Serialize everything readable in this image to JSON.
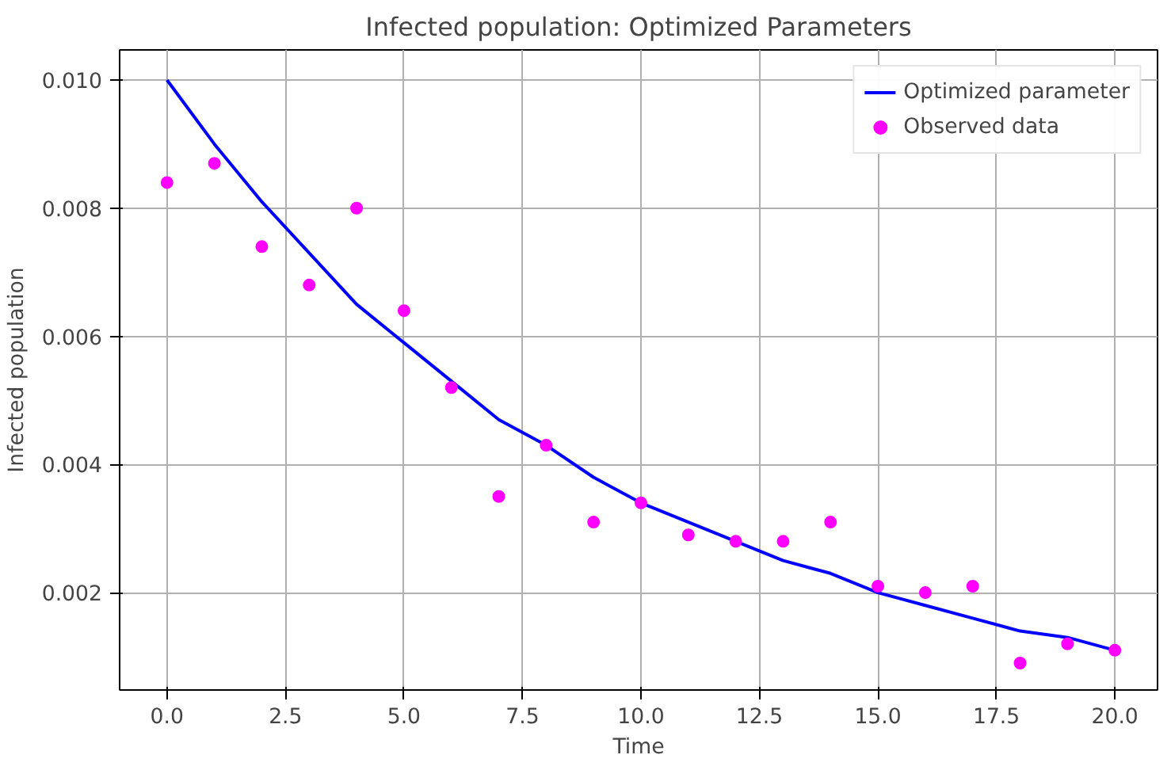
{
  "chart_data": {
    "type": "line",
    "title": "Infected population: Optimized Parameters",
    "xlabel": "Time",
    "ylabel": "Infected population",
    "series": [
      {
        "name": "Optimized parameter",
        "color": "#0000ff",
        "marker": "none",
        "line_style": "solid",
        "x": [
          0,
          1,
          2,
          3,
          4,
          5,
          6,
          7,
          8,
          9,
          10,
          11,
          12,
          13,
          14,
          15,
          16,
          17,
          18,
          19,
          20
        ],
        "values": [
          0.01,
          0.009,
          0.0081,
          0.0073,
          0.0065,
          0.0059,
          0.0053,
          0.0047,
          0.0043,
          0.0038,
          0.0034,
          0.0031,
          0.0028,
          0.0025,
          0.0023,
          0.002,
          0.0018,
          0.0016,
          0.0014,
          0.0013,
          0.0011
        ]
      },
      {
        "name": "Observed data",
        "type": "scatter",
        "color": "#ff00ff",
        "marker": "circle",
        "x": [
          0,
          1,
          2,
          3,
          4,
          5,
          6,
          7,
          8,
          9,
          10,
          11,
          12,
          13,
          14,
          15,
          16,
          17,
          18,
          19,
          20
        ],
        "values": [
          0.0084,
          0.0087,
          0.0074,
          0.0068,
          0.008,
          0.0064,
          0.0052,
          0.0035,
          0.0043,
          0.0031,
          0.0034,
          0.0029,
          0.0028,
          0.0028,
          0.0031,
          0.0021,
          0.002,
          0.0021,
          0.0009,
          0.0012,
          0.0011
        ]
      }
    ],
    "xlim": [
      -1.0,
      20.9
    ],
    "ylim": [
      0.00048,
      0.01047
    ],
    "xticks": [
      {
        "value": 0,
        "label": "0.0"
      },
      {
        "value": 2.5,
        "label": "2.5"
      },
      {
        "value": 5,
        "label": "5.0"
      },
      {
        "value": 7.5,
        "label": "7.5"
      },
      {
        "value": 10,
        "label": "10.0"
      },
      {
        "value": 12.5,
        "label": "12.5"
      },
      {
        "value": 15,
        "label": "15.0"
      },
      {
        "value": 17.5,
        "label": "17.5"
      },
      {
        "value": 20,
        "label": "20.0"
      }
    ],
    "yticks": [
      {
        "value": 0.002,
        "label": "0.002"
      },
      {
        "value": 0.004,
        "label": "0.004"
      },
      {
        "value": 0.006,
        "label": "0.006"
      },
      {
        "value": 0.008,
        "label": "0.008"
      },
      {
        "value": 0.01,
        "label": "0.010"
      }
    ],
    "grid": true,
    "legend": "top right"
  }
}
